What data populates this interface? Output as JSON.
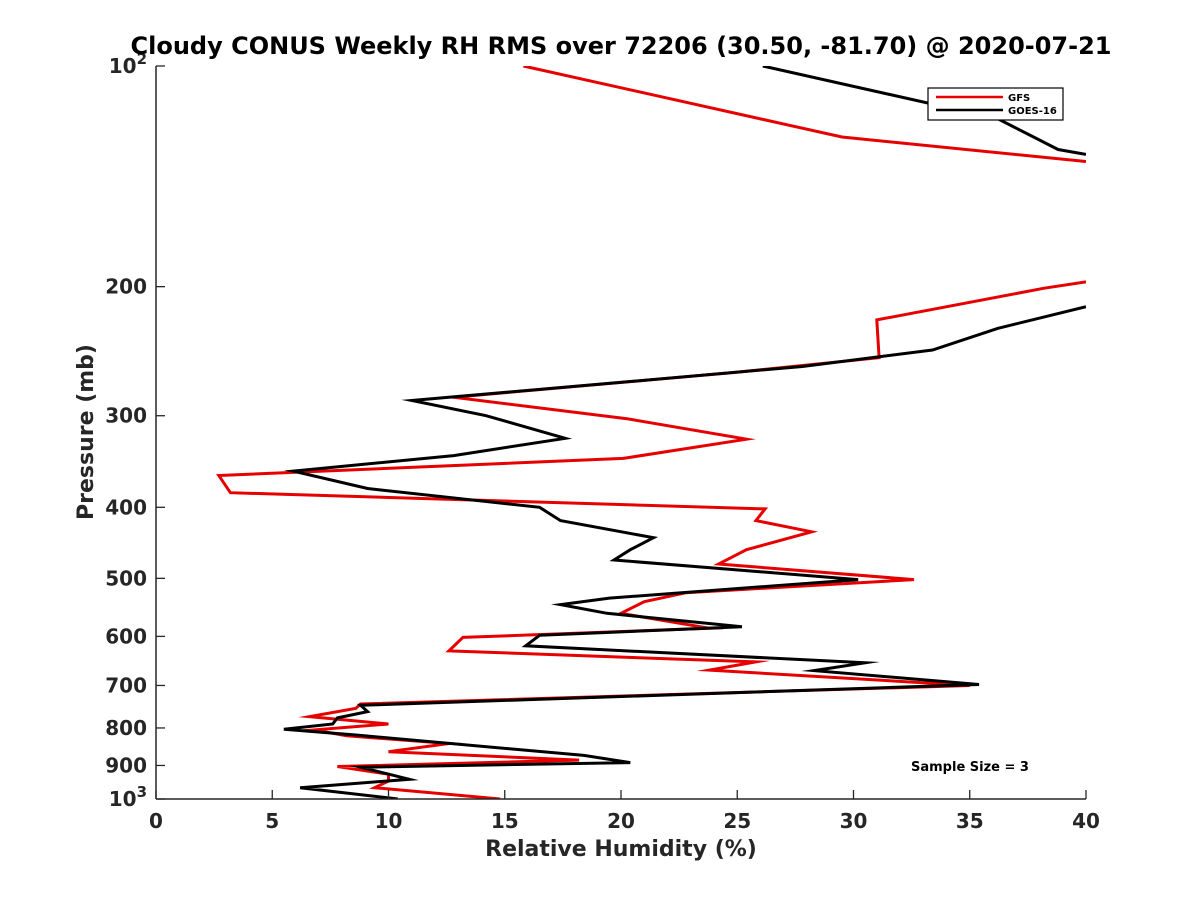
{
  "chart_data": {
    "type": "line",
    "title": "Cloudy CONUS Weekly RH RMS over 72206 (30.50, -81.70) @ 2020-07-21",
    "xlabel": "Relative Humidity (%)",
    "ylabel": "Pressure (mb)",
    "xlim": [
      0,
      40
    ],
    "ylim": [
      100,
      1000
    ],
    "yscale": "log",
    "yreverse": true,
    "xticks": [
      0,
      5,
      10,
      15,
      20,
      25,
      30,
      35,
      40
    ],
    "yticks": [
      100,
      200,
      300,
      400,
      500,
      600,
      700,
      800,
      900,
      1000
    ],
    "ytick_labels": [
      {
        "value": 100,
        "base": "10",
        "exp": "2"
      },
      {
        "value": 200,
        "base": "200",
        "exp": ""
      },
      {
        "value": 300,
        "base": "300",
        "exp": ""
      },
      {
        "value": 400,
        "base": "400",
        "exp": ""
      },
      {
        "value": 500,
        "base": "500",
        "exp": ""
      },
      {
        "value": 600,
        "base": "600",
        "exp": ""
      },
      {
        "value": 700,
        "base": "700",
        "exp": ""
      },
      {
        "value": 800,
        "base": "800",
        "exp": ""
      },
      {
        "value": 900,
        "base": "900",
        "exp": ""
      },
      {
        "value": 1000,
        "base": "10",
        "exp": "3"
      }
    ],
    "legend_position": "top-right",
    "annotation": "Sample Size = 3",
    "series": [
      {
        "name": "GFS",
        "color": "#e60000",
        "segments": [
          [
            [
              15.8,
              100
            ],
            [
              29.5,
              125
            ],
            [
              40,
              135
            ]
          ],
          [
            [
              40,
              197
            ],
            [
              38.2,
              201
            ],
            [
              31,
              222
            ],
            [
              31.1,
              250
            ],
            [
              24.8,
              262
            ],
            [
              12.8,
              283
            ],
            [
              20.3,
              303
            ],
            [
              25.4,
              323
            ],
            [
              20.1,
              343
            ],
            [
              2.7,
              362
            ],
            [
              3.2,
              382
            ],
            [
              26.2,
              402
            ],
            [
              25.8,
              417
            ],
            [
              28.2,
              432
            ],
            [
              25.4,
              457
            ],
            [
              24.2,
              478
            ],
            [
              32.6,
              502
            ],
            [
              22.8,
              523
            ],
            [
              21.0,
              538
            ],
            [
              20.0,
              558
            ],
            [
              23.8,
              585
            ],
            [
              13.2,
              602
            ],
            [
              12.6,
              628
            ],
            [
              25.8,
              650
            ],
            [
              23.8,
              667
            ],
            [
              35.0,
              700
            ],
            [
              8.8,
              742
            ],
            [
              8.6,
              752
            ],
            [
              6.6,
              772
            ],
            [
              10.0,
              790
            ],
            [
              6.8,
              805
            ],
            [
              8.2,
              820
            ],
            [
              12.6,
              840
            ],
            [
              10.0,
              862
            ],
            [
              18.2,
              885
            ],
            [
              7.8,
              903
            ],
            [
              10.0,
              925
            ],
            [
              10.0,
              945
            ],
            [
              9.4,
              965
            ],
            [
              14.8,
              1000
            ]
          ]
        ]
      },
      {
        "name": "GOES-16",
        "color": "#000000",
        "segments": [
          [
            [
              26.1,
              100
            ],
            [
              36.2,
              118
            ],
            [
              38.8,
              130
            ],
            [
              40,
              132
            ]
          ],
          [
            [
              40,
              213
            ],
            [
              36.2,
              228
            ],
            [
              33.4,
              244
            ],
            [
              27.8,
              257
            ],
            [
              11.0,
              286
            ],
            [
              14.2,
              300
            ],
            [
              17.6,
              322
            ],
            [
              12.8,
              340
            ],
            [
              5.9,
              357
            ],
            [
              9.1,
              377
            ],
            [
              16.5,
              400
            ],
            [
              17.4,
              417
            ],
            [
              21.4,
              440
            ],
            [
              20.4,
              457
            ],
            [
              19.7,
              472
            ],
            [
              30.2,
              502
            ],
            [
              19.5,
              532
            ],
            [
              17.4,
              543
            ],
            [
              19.4,
              558
            ],
            [
              25.2,
              582
            ],
            [
              16.5,
              598
            ],
            [
              15.9,
              618
            ],
            [
              30.5,
              652
            ],
            [
              28.3,
              668
            ],
            [
              35.4,
              698
            ],
            [
              8.8,
              745
            ],
            [
              9.1,
              760
            ],
            [
              7.8,
              775
            ],
            [
              7.6,
              790
            ],
            [
              5.5,
              803
            ],
            [
              8.6,
              818
            ],
            [
              18.4,
              872
            ],
            [
              20.4,
              892
            ],
            [
              8.8,
              905
            ],
            [
              10.9,
              940
            ],
            [
              6.2,
              965
            ],
            [
              10.4,
              1000
            ]
          ]
        ]
      }
    ]
  }
}
